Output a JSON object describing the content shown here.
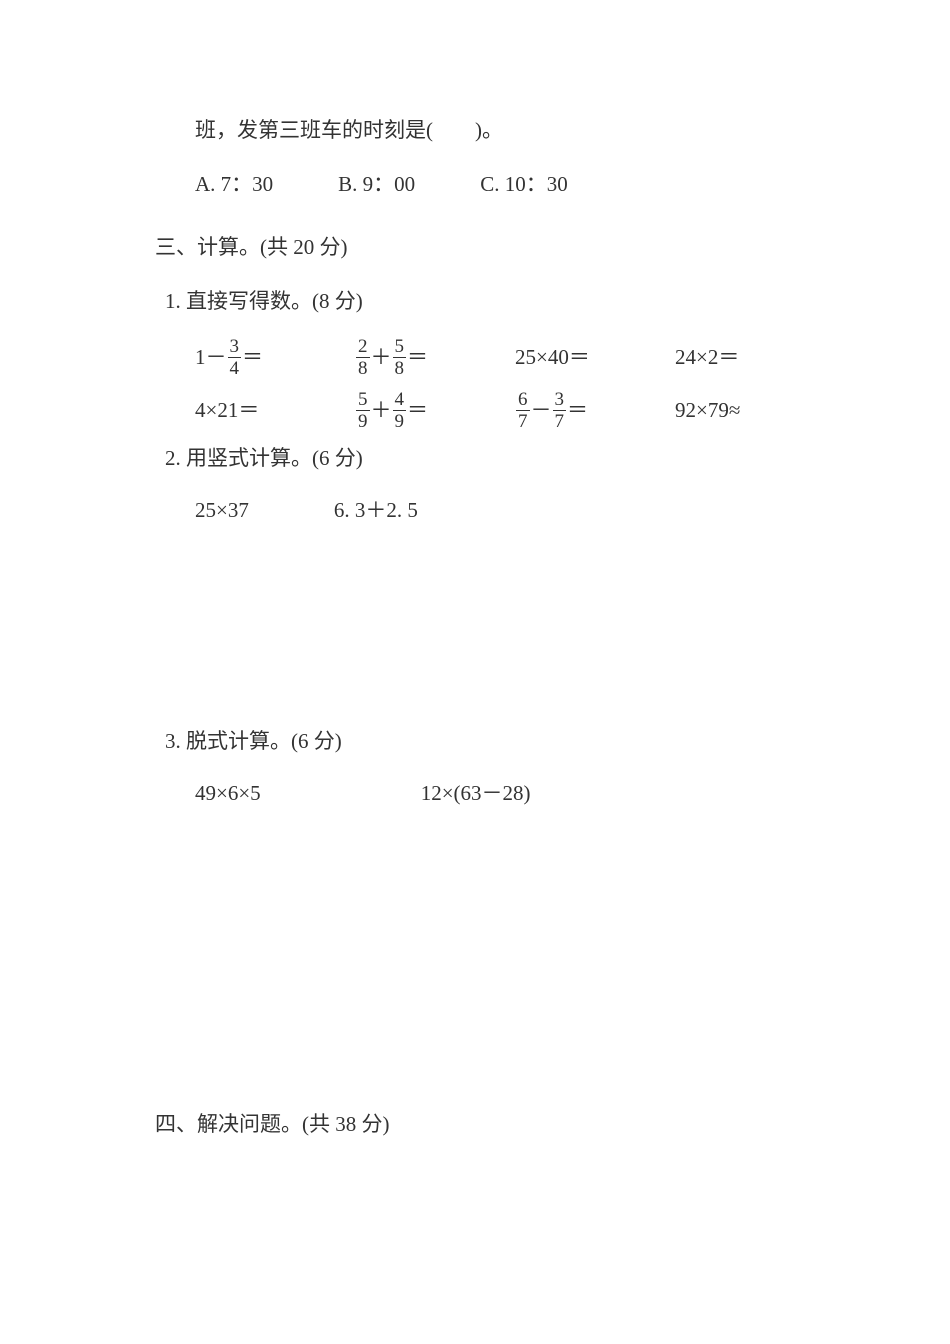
{
  "colors": {
    "text": "#333333",
    "background": "#ffffff",
    "fraction_bar": "#333333"
  },
  "typography": {
    "body_fontsize_pt": 16,
    "frac_fontsize_pt": 14,
    "font_family": "SimSun"
  },
  "continued_line1": "班，发第三班车的时刻是(　　)。",
  "choices_bus": {
    "a": "A. 7：30",
    "b": "B. 9：00",
    "c": "C. 10：30"
  },
  "section3_title": "三、计算。(共 20 分)",
  "sub1_title": "1. 直接写得数。(8 分)",
  "mental": {
    "r1": {
      "c1_pre": "1－",
      "c1_frac_n": "3",
      "c1_frac_d": "4",
      "c1_post": "＝",
      "c2_f1n": "2",
      "c2_f1d": "8",
      "c2_op": "＋",
      "c2_f2n": "5",
      "c2_f2d": "8",
      "c2_post": "＝",
      "c3": "25×40＝",
      "c4": "24×2＝"
    },
    "r2": {
      "c1": "4×21＝",
      "c2_f1n": "5",
      "c2_f1d": "9",
      "c2_op": "＋",
      "c2_f2n": "4",
      "c2_f2d": "9",
      "c2_post": "＝",
      "c3_f1n": "6",
      "c3_f1d": "7",
      "c3_op": "－",
      "c3_f2n": "3",
      "c3_f2d": "7",
      "c3_post": "＝",
      "c4": "92×79≈"
    }
  },
  "sub2_title": "2. 用竖式计算。(6 分)",
  "vertical": {
    "a": "25×37",
    "b": "6. 3＋2. 5"
  },
  "sub3_title": "3. 脱式计算。(6 分)",
  "step": {
    "a": "49×6×5",
    "b": "12×(63－28)"
  },
  "section4_title": "四、解决问题。(共 38 分)"
}
